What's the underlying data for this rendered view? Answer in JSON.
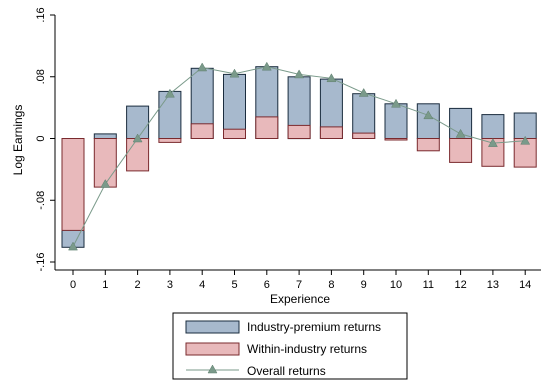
{
  "chart_data": {
    "type": "bar",
    "title": "",
    "xlabel": "Experience",
    "ylabel": "Log Earnings",
    "categories": [
      "0",
      "1",
      "2",
      "3",
      "4",
      "5",
      "6",
      "7",
      "8",
      "9",
      "10",
      "11",
      "12",
      "13",
      "14"
    ],
    "ylim": [
      -0.16,
      0.16
    ],
    "yticks": [
      -0.16,
      -0.08,
      0,
      0.08,
      0.16
    ],
    "ytick_labels": [
      "-.16",
      "-.08",
      "0",
      ".08",
      ".16"
    ],
    "grid": false,
    "legend_position": "bottom",
    "series": [
      {
        "name": "Industry-premium returns",
        "kind": "bar",
        "color": "#a7b9cd",
        "values": [
          -0.141,
          0.006,
          0.042,
          0.061,
          0.091,
          0.083,
          0.093,
          0.08,
          0.077,
          0.058,
          0.045,
          0.045,
          0.039,
          0.031,
          0.033
        ]
      },
      {
        "name": "Within-industry returns",
        "kind": "bar",
        "color": "#e8b9bb",
        "values": [
          -0.119,
          -0.063,
          -0.042,
          -0.005,
          0.019,
          0.012,
          0.028,
          0.017,
          0.015,
          0.007,
          -0.002,
          -0.016,
          -0.031,
          -0.036,
          -0.037
        ]
      },
      {
        "name": "Overall returns",
        "kind": "line",
        "marker": "triangle",
        "color": "#7a9a8a",
        "values": [
          -0.14,
          -0.059,
          0.0,
          0.058,
          0.092,
          0.084,
          0.093,
          0.083,
          0.078,
          0.059,
          0.045,
          0.03,
          0.006,
          -0.006,
          -0.003
        ]
      }
    ]
  }
}
